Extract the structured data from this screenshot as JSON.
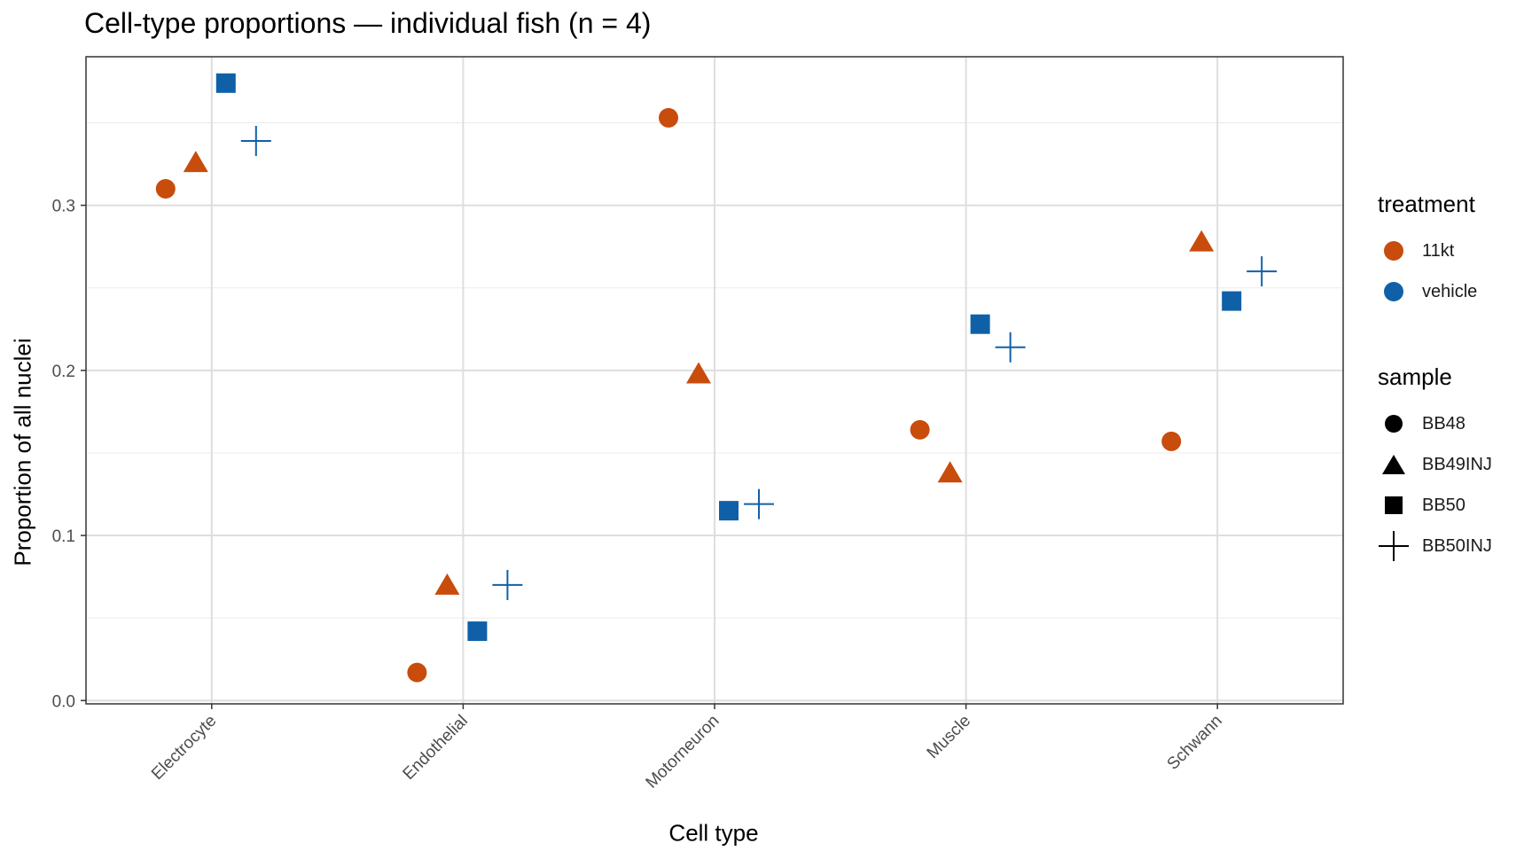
{
  "title": "Cell-type proportions — individual fish (n = 4)",
  "chart_data": {
    "type": "scatter",
    "title": "Cell-type proportions — individual fish (n = 4)",
    "xlabel": "Cell type",
    "ylabel": "Proportion of all nuclei",
    "categories": [
      "Electrocyte",
      "Endothelial",
      "Motorneuron",
      "Muscle",
      "Schwann"
    ],
    "ylim": [
      -0.002,
      0.39
    ],
    "yticks": [
      0.0,
      0.1,
      0.2,
      0.3
    ],
    "ytick_labels": [
      "0.0",
      "0.1",
      "0.2",
      "0.3"
    ],
    "grid": true,
    "legend_position": "right",
    "treatment_colors": {
      "11kt": "#c84c0c",
      "vehicle": "#1060a8"
    },
    "series": [
      {
        "name": "BB48",
        "treatment": "11kt",
        "shape": "circle",
        "values": [
          0.31,
          0.017,
          0.353,
          0.164,
          0.157
        ]
      },
      {
        "name": "BB49INJ",
        "treatment": "11kt",
        "shape": "triangle",
        "values": [
          0.326,
          0.07,
          0.198,
          0.138,
          0.278
        ]
      },
      {
        "name": "BB50",
        "treatment": "vehicle",
        "shape": "square",
        "values": [
          0.374,
          0.042,
          0.115,
          0.228,
          0.242
        ]
      },
      {
        "name": "BB50INJ",
        "treatment": "vehicle",
        "shape": "plus",
        "values": [
          0.339,
          0.07,
          0.119,
          0.214,
          0.26
        ]
      }
    ]
  },
  "legend": {
    "treatment": {
      "title": "treatment",
      "items": [
        {
          "label": "11kt",
          "color": "#c84c0c"
        },
        {
          "label": "vehicle",
          "color": "#1060a8"
        }
      ]
    },
    "sample": {
      "title": "sample",
      "items": [
        {
          "label": "BB48",
          "shape": "circle"
        },
        {
          "label": "BB49INJ",
          "shape": "triangle"
        },
        {
          "label": "BB50",
          "shape": "square"
        },
        {
          "label": "BB50INJ",
          "shape": "plus"
        }
      ]
    }
  }
}
